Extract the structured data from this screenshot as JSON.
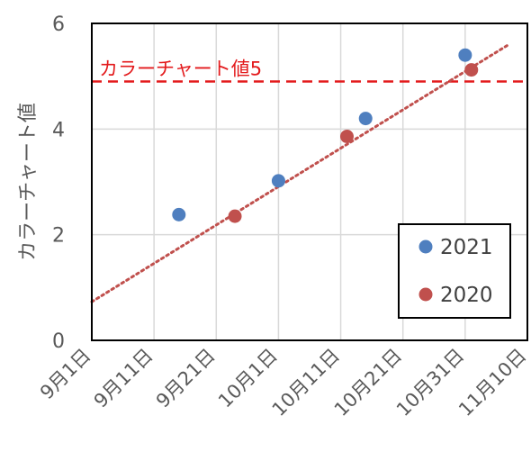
{
  "chart_data": {
    "type": "scatter",
    "xlabel": "",
    "ylabel": "カラーチャート値",
    "ylim": [
      0,
      6
    ],
    "y_ticks": [
      0,
      2,
      4,
      6
    ],
    "x_ticks": [
      "9月1日",
      "9月11日",
      "9月21日",
      "10月1日",
      "10月11日",
      "10月21日",
      "10月31日",
      "11月10日"
    ],
    "x_range": [
      "2020-09-01",
      "2020-11-10"
    ],
    "grid": true,
    "legend_position": "bottom-right",
    "series": [
      {
        "name": "2021",
        "color": "#4f7fbf",
        "points": [
          {
            "x": "9月15日",
            "y": 2.38
          },
          {
            "x": "10月1日",
            "y": 3.02
          },
          {
            "x": "10月15日",
            "y": 4.2
          },
          {
            "x": "10月31日",
            "y": 5.4
          }
        ]
      },
      {
        "name": "2020",
        "color": "#c0504d",
        "points": [
          {
            "x": "9月24日",
            "y": 2.35
          },
          {
            "x": "10月12日",
            "y": 3.86
          },
          {
            "x": "11月1日",
            "y": 5.12
          }
        ]
      }
    ],
    "trendline": {
      "series": "2020",
      "style": "dotted",
      "color": "#c0504d",
      "start": {
        "x": "9月1日",
        "y": 0.73
      },
      "end": {
        "x": "11月7日",
        "y": 5.6
      }
    },
    "reference_line": {
      "label": "カラーチャート値5",
      "y": 4.9,
      "color": "#e31a1c",
      "style": "dashed"
    }
  }
}
